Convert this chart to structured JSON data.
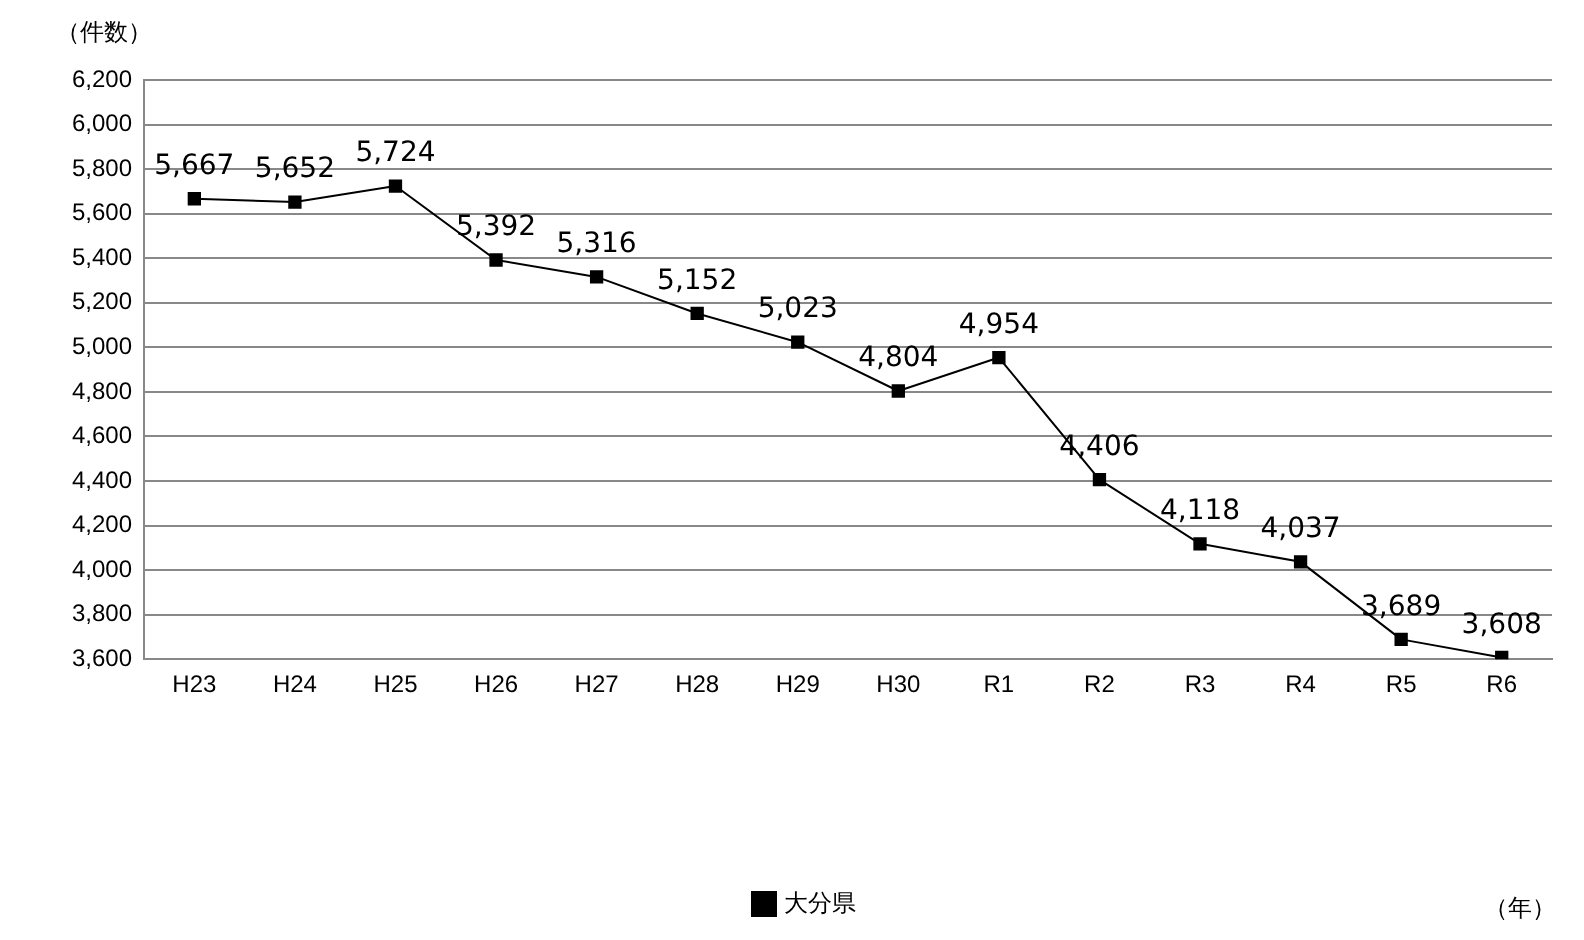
{
  "chart_data": {
    "type": "line",
    "ylabel": "（件数）",
    "annotations": [
      "（年）"
    ],
    "categories": [
      "H23",
      "H24",
      "H25",
      "H26",
      "H27",
      "H28",
      "H29",
      "H30",
      "R1",
      "R2",
      "R3",
      "R4",
      "R5",
      "R6"
    ],
    "series": [
      {
        "name": "大分県",
        "color": "#000000",
        "values": [
          5667,
          5652,
          5724,
          5392,
          5316,
          5152,
          5023,
          4804,
          4954,
          4406,
          4118,
          4037,
          3689,
          3608
        ],
        "value_labels": [
          "5,667",
          "5,652",
          "5,724",
          "5,392",
          "5,316",
          "5,152",
          "5,023",
          "4,804",
          "4,954",
          "4,406",
          "4,118",
          "4,037",
          "3,689",
          "3,608"
        ]
      }
    ],
    "ylim": [
      3600,
      6200
    ],
    "yticks": [
      {
        "value": 3600,
        "label": "3,600"
      },
      {
        "value": 3800,
        "label": "3,800"
      },
      {
        "value": 4000,
        "label": "4,000"
      },
      {
        "value": 4200,
        "label": "4,200"
      },
      {
        "value": 4400,
        "label": "4,400"
      },
      {
        "value": 4600,
        "label": "4,600"
      },
      {
        "value": 4800,
        "label": "4,800"
      },
      {
        "value": 5000,
        "label": "5,000"
      },
      {
        "value": 5200,
        "label": "5,200"
      },
      {
        "value": 5400,
        "label": "5,400"
      },
      {
        "value": 5600,
        "label": "5,600"
      },
      {
        "value": 5800,
        "label": "5,800"
      },
      {
        "value": 6000,
        "label": "6,000"
      },
      {
        "value": 6200,
        "label": "6,200"
      }
    ],
    "grid": "y",
    "legend": "bottom",
    "marker": "square",
    "line_style": "solid"
  }
}
